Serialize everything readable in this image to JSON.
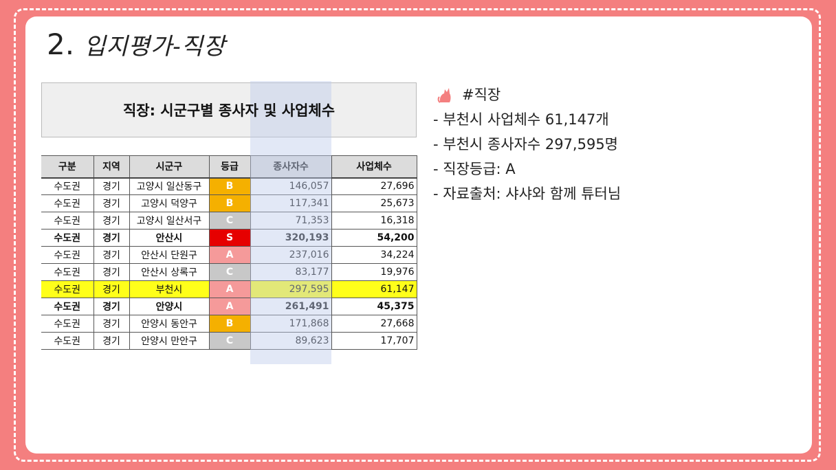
{
  "title": {
    "number": "2.",
    "text": "입지평가-직장"
  },
  "sheet": {
    "title": "직장: 시군구별 종사자 및 사업체수",
    "columns": [
      "구분",
      "지역",
      "시군구",
      "등급",
      "종사자수",
      "사업체수"
    ],
    "rows": [
      {
        "region_type": "수도권",
        "province": "경기",
        "district": "고양시 일산동구",
        "grade": "B",
        "employees": "146,057",
        "businesses": "27,696",
        "style": "normal"
      },
      {
        "region_type": "수도권",
        "province": "경기",
        "district": "고양시 덕양구",
        "grade": "B",
        "employees": "117,341",
        "businesses": "25,673",
        "style": "normal"
      },
      {
        "region_type": "수도권",
        "province": "경기",
        "district": "고양시 일산서구",
        "grade": "C",
        "employees": "71,353",
        "businesses": "16,318",
        "style": "normal"
      },
      {
        "region_type": "수도권",
        "province": "경기",
        "district": "안산시",
        "grade": "S",
        "employees": "320,193",
        "businesses": "54,200",
        "style": "bold"
      },
      {
        "region_type": "수도권",
        "province": "경기",
        "district": "안산시 단원구",
        "grade": "A",
        "employees": "237,016",
        "businesses": "34,224",
        "style": "normal"
      },
      {
        "region_type": "수도권",
        "province": "경기",
        "district": "안산시 상록구",
        "grade": "C",
        "employees": "83,177",
        "businesses": "19,976",
        "style": "normal"
      },
      {
        "region_type": "수도권",
        "province": "경기",
        "district": "부천시",
        "grade": "A",
        "employees": "297,595",
        "businesses": "61,147",
        "style": "highlight"
      },
      {
        "region_type": "수도권",
        "province": "경기",
        "district": "안양시",
        "grade": "A",
        "employees": "261,491",
        "businesses": "45,375",
        "style": "bold"
      },
      {
        "region_type": "수도권",
        "province": "경기",
        "district": "안양시 동안구",
        "grade": "B",
        "employees": "171,868",
        "businesses": "27,668",
        "style": "normal"
      },
      {
        "region_type": "수도권",
        "province": "경기",
        "district": "안양시 만안구",
        "grade": "C",
        "employees": "89,623",
        "businesses": "17,707",
        "style": "normal"
      }
    ],
    "colors": {
      "S": "#e60000",
      "A": "#f59a9a",
      "B": "#f5b000",
      "C": "#c8c8c8",
      "highlight_row": "#ffff1a"
    }
  },
  "notes": {
    "icon": "cat-icon",
    "heading": "#직장",
    "lines": [
      "- 부천시 사업체수 61,147개",
      "- 부천시 종사자수 297,595명",
      "- 직장등급: A",
      "- 자료출처: 샤샤와 함께 튜터님"
    ]
  },
  "theme": {
    "background": "#f47f7f",
    "card": "#ffffff"
  }
}
